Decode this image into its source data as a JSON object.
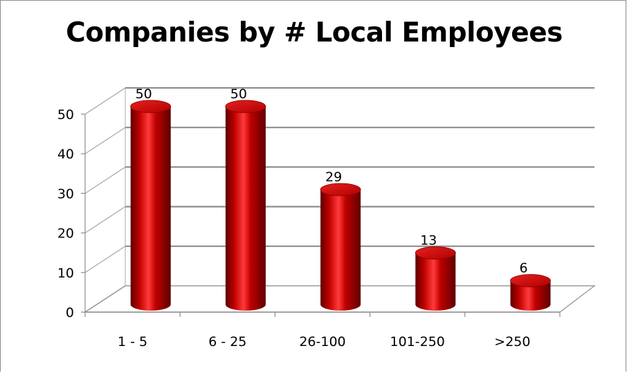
{
  "chart_data": {
    "type": "bar",
    "title": "Companies by # Local Employees",
    "categories": [
      "1 - 5",
      "6 - 25",
      "26-100",
      "101-250",
      ">250"
    ],
    "values": [
      50,
      50,
      29,
      13,
      6
    ],
    "ylim": [
      0,
      50
    ],
    "yticks": [
      0,
      10,
      20,
      30,
      40,
      50
    ],
    "style": "3d-cylinder",
    "grid": true,
    "legend": "none",
    "colors": {
      "bar": "#c00000",
      "bar_dark": "#5e0000",
      "bar_light": "#ff3a3a",
      "gridline": "#8e8e8e"
    }
  }
}
